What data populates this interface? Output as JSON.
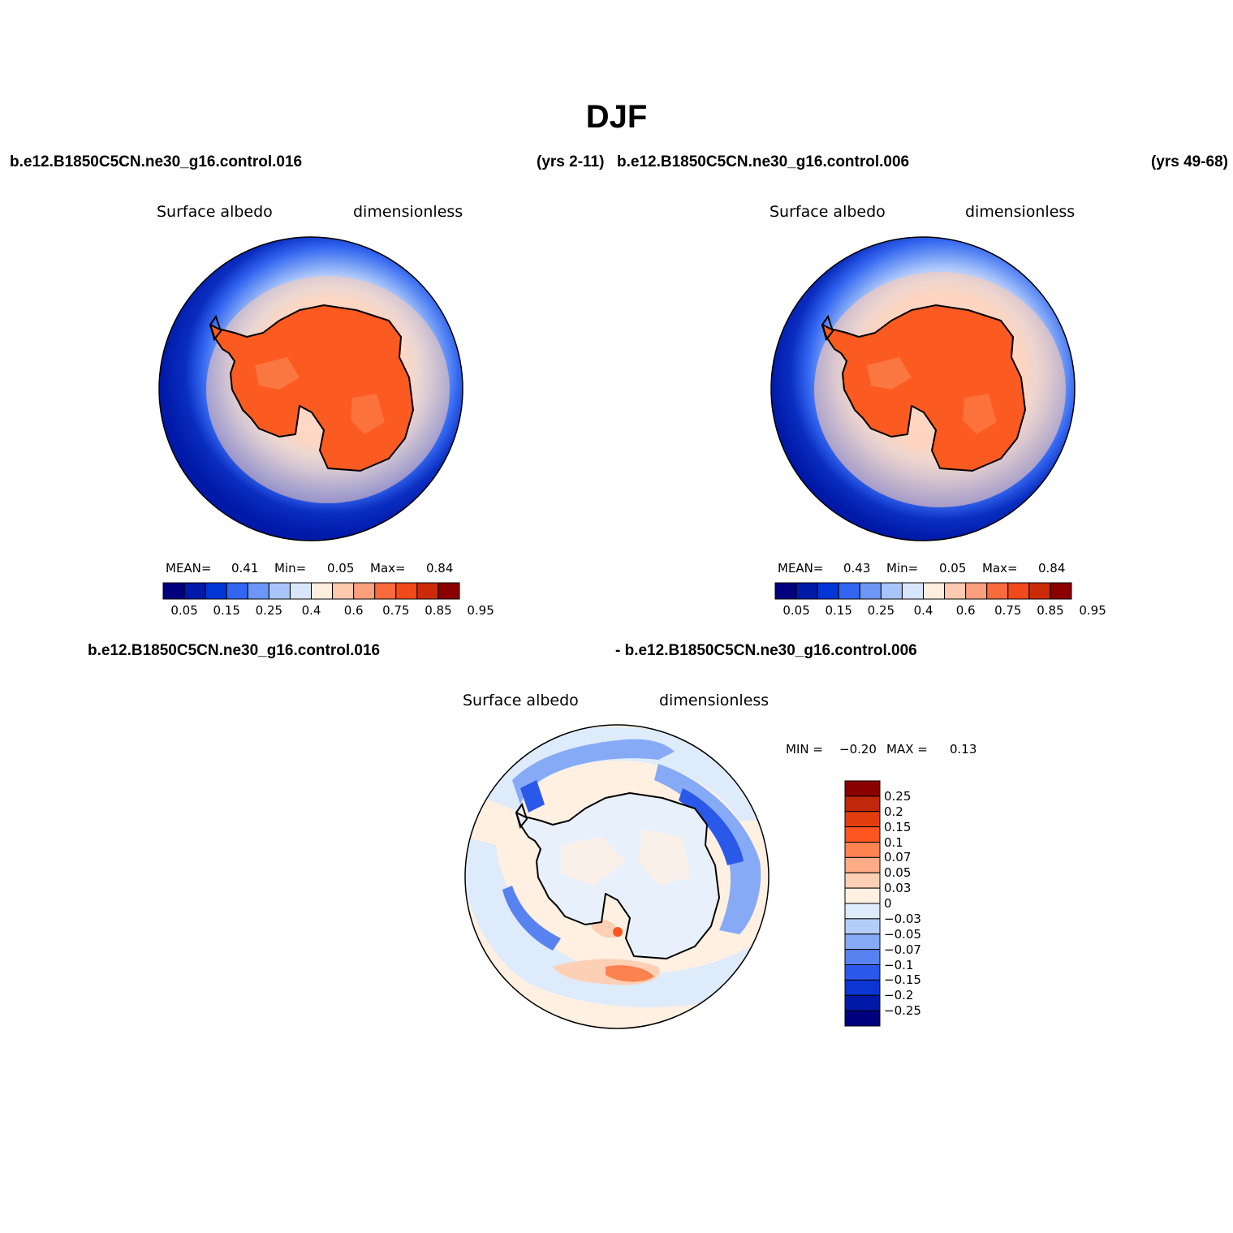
{
  "title": "DJF",
  "header": {
    "case1": "b.e12.B1850C5CN.ne30_g16.control.016",
    "years1": "(yrs 2-11)",
    "case2": "b.e12.B1850C5CN.ne30_g16.control.006",
    "years2": "(yrs 49-68)"
  },
  "panels": [
    {
      "variable": "Surface albedo",
      "units": "dimensionless",
      "mean_label": "MEAN=",
      "mean": "0.41",
      "min_label": "Min=",
      "min": "0.05",
      "max_label": "Max=",
      "max": "0.84"
    },
    {
      "variable": "Surface albedo",
      "units": "dimensionless",
      "mean_label": "MEAN=",
      "mean": "0.43",
      "min_label": "Min=",
      "min": "0.05",
      "max_label": "Max=",
      "max": "0.84"
    }
  ],
  "diff": {
    "case_a": "b.e12.B1850C5CN.ne30_g16.control.016",
    "case_b": "- b.e12.B1850C5CN.ne30_g16.control.006",
    "variable": "Surface albedo",
    "units": "dimensionless",
    "min_label": "MIN =",
    "min": "−0.20",
    "max_label": "MAX =",
    "max": "0.13"
  },
  "colorbar_main": {
    "colors": [
      "#00007f",
      "#0019a8",
      "#0035d6",
      "#3366f0",
      "#6b96f5",
      "#a9c4fa",
      "#d7e6fb",
      "#ffeedd",
      "#fdcab0",
      "#fc9f7d",
      "#fb6a3d",
      "#f2491a",
      "#cc2b09",
      "#8b0000"
    ],
    "tick_labels": [
      "0.05",
      "0.15",
      "0.25",
      "0.4",
      "0.6",
      "0.75",
      "0.85",
      "0.95"
    ]
  },
  "colorbar_diff": {
    "colors": [
      "#8b0000",
      "#c1270a",
      "#e23d0f",
      "#fb5620",
      "#fc8250",
      "#fdac86",
      "#fdd0b6",
      "#fff0e1",
      "#deebfb",
      "#b4cefa",
      "#86aaf5",
      "#5882f0",
      "#2a59ea",
      "#0b36d4",
      "#0019a8",
      "#00007f"
    ],
    "tick_labels": [
      "0.25",
      "0.2",
      "0.15",
      "0.1",
      "0.07",
      "0.05",
      "0.03",
      "0",
      "−0.03",
      "−0.05",
      "−0.07",
      "−0.1",
      "−0.15",
      "−0.2",
      "−0.25"
    ]
  }
}
